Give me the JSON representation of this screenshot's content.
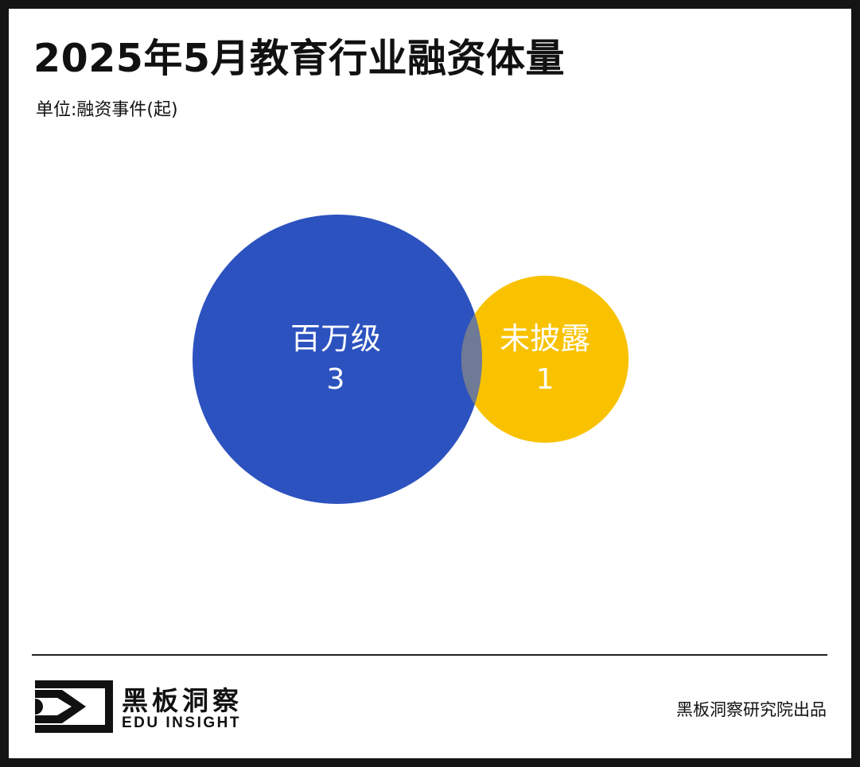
{
  "header": {
    "title": "2025年5月教育行业融资体量",
    "unit": "单位:融资事件(起)"
  },
  "chart_data": {
    "type": "bubble",
    "title": "2025年5月教育行业融资体量",
    "unit": "单位:融资事件(起)",
    "categories": [
      "百万级",
      "未披露"
    ],
    "values": [
      3,
      1
    ],
    "colors": [
      "#2C52BF",
      "#F9C200"
    ],
    "overlap_color": "#6E7A96"
  },
  "footer": {
    "logo_cn": "黑板洞察",
    "logo_en": "EDU INSIGHT",
    "credit": "黑板洞察研究院出品"
  }
}
